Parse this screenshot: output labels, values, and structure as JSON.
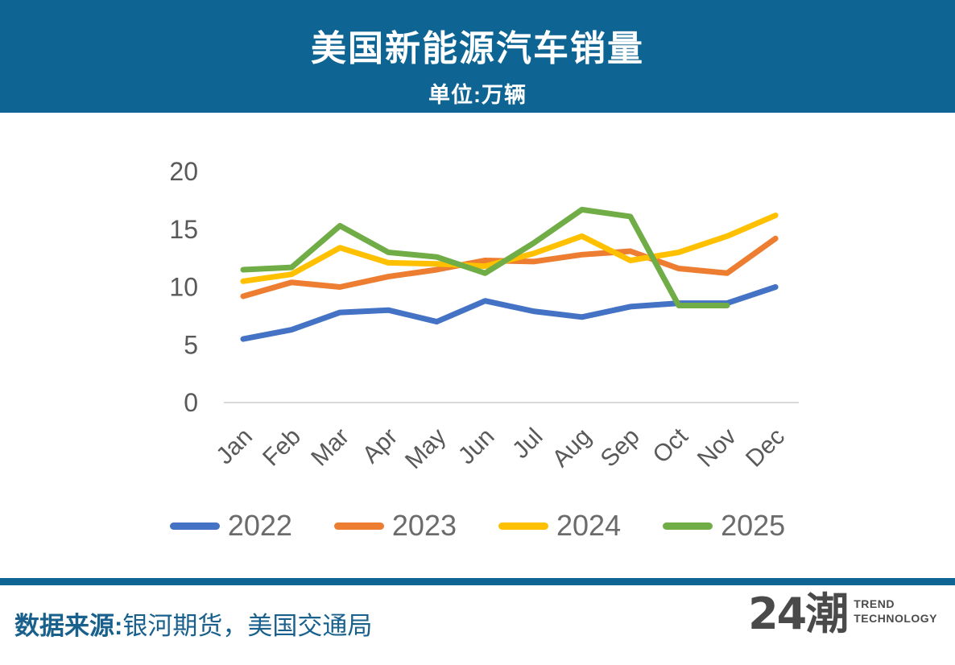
{
  "header": {
    "title": "美国新能源汽车销量",
    "subtitle": "单位:万辆",
    "background_color": "#0E6493",
    "text_color": "#FFFFFF"
  },
  "chart_data": {
    "type": "line",
    "title": "美国新能源汽车销量",
    "unit_label": "单位:万辆",
    "categories": [
      "Jan",
      "Feb",
      "Mar",
      "Apr",
      "May",
      "Jun",
      "Jul",
      "Aug",
      "Sep",
      "Oct",
      "Nov",
      "Dec"
    ],
    "yticks": [
      0,
      5,
      10,
      15,
      20
    ],
    "ylim": [
      0,
      20
    ],
    "grid": false,
    "legend_position": "bottom",
    "axis_text_color": "#595959",
    "axis_line_color": "#D9D9D9",
    "series": [
      {
        "name": "2022",
        "color": "#4472C4",
        "values": [
          5.5,
          6.3,
          7.8,
          8.0,
          7.0,
          8.8,
          7.9,
          7.4,
          8.3,
          8.6,
          8.6,
          10.0
        ]
      },
      {
        "name": "2023",
        "color": "#ED7D31",
        "values": [
          9.2,
          10.4,
          10.0,
          10.9,
          11.5,
          12.3,
          12.2,
          12.8,
          13.1,
          11.6,
          11.2,
          14.2
        ]
      },
      {
        "name": "2024",
        "color": "#FFC000",
        "values": [
          10.5,
          11.1,
          13.4,
          12.1,
          12.0,
          11.8,
          12.9,
          14.4,
          12.3,
          13.0,
          14.4,
          16.2
        ]
      },
      {
        "name": "2025",
        "color": "#70AD47",
        "values": [
          11.5,
          11.7,
          15.3,
          13.0,
          12.6,
          11.2,
          13.8,
          16.7,
          16.1,
          8.4,
          8.4,
          null
        ]
      }
    ]
  },
  "footer": {
    "source_label": "数据来源:",
    "source_text": "银河期货，美国交通局",
    "text_color": "#19618C",
    "divider_color": "#0E6493",
    "logo": {
      "mark": "24潮",
      "line1": "TREND",
      "line2": "TECHNOLOGY",
      "color": "#4A4A4A"
    }
  }
}
